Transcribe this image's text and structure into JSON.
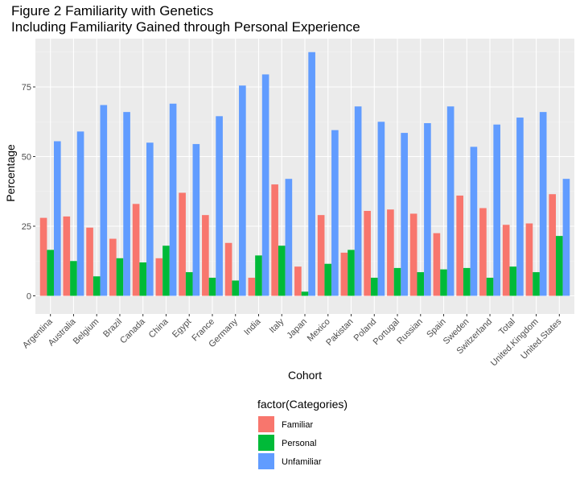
{
  "chart_data": {
    "type": "bar",
    "title": "Figure 2 Familiarity with Genetics",
    "subtitle": "Including Familiarity Gained through Personal Experience",
    "xlabel": "Cohort",
    "ylabel": "Percentage",
    "ylim": [
      0,
      92
    ],
    "yticks": [
      0,
      25,
      50,
      75
    ],
    "grid": true,
    "legend_position": "bottom",
    "legend_title": "factor(Categories)",
    "categories": [
      "Argentina",
      "Australia",
      "Belgium",
      "Brazil",
      "Canada",
      "China",
      "Egypt",
      "France",
      "Germany",
      "India",
      "Italy",
      "Japan",
      "Mexico",
      "Pakistan",
      "Poland",
      "Portugal",
      "Russian",
      "Spain",
      "Sweden",
      "Switzerland",
      "Total",
      "United.Kingdom",
      "United.States"
    ],
    "series": [
      {
        "name": "Familiar",
        "color": "#F8766D",
        "values": [
          28,
          28.5,
          24.5,
          20.5,
          33,
          13.5,
          37,
          29,
          19,
          6.5,
          40,
          10.5,
          29,
          15.5,
          30.5,
          31,
          29.5,
          22.5,
          36,
          31.5,
          25.5,
          26,
          36.5
        ]
      },
      {
        "name": "Personal",
        "color": "#00BA38",
        "values": [
          16.5,
          12.5,
          7,
          13.5,
          12,
          18,
          8.5,
          6.5,
          5.5,
          14.5,
          18,
          1.5,
          11.5,
          16.5,
          6.5,
          10,
          8.5,
          9.5,
          10,
          6.5,
          10.5,
          8.5,
          21.5
        ]
      },
      {
        "name": "Unfamiliar",
        "color": "#619CFF",
        "values": [
          55.5,
          59,
          68.5,
          66,
          55,
          69,
          54.5,
          64.5,
          75.5,
          79.5,
          42,
          87.5,
          59.5,
          68,
          62.5,
          58.5,
          62,
          68,
          53.5,
          61.5,
          64,
          66,
          42
        ]
      }
    ]
  }
}
